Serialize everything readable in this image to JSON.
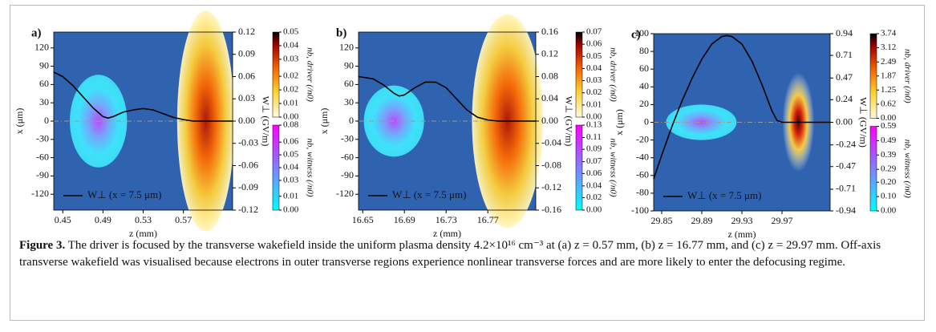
{
  "chart_data": [
    {
      "type": "line",
      "label": "a)",
      "xlabel": "z (mm)",
      "ylabel": "x (μm)",
      "y2label": "W⊥ (GV/m)",
      "xlim": [
        0.441,
        0.619
      ],
      "xticks": [
        0.45,
        0.49,
        0.53,
        0.57
      ],
      "ylim": [
        -146,
        146
      ],
      "yticks": [
        120,
        90,
        60,
        30,
        0,
        -30,
        -60,
        -90,
        -120
      ],
      "y2lim": [
        -0.12,
        0.12
      ],
      "y2ticks": [
        0.12,
        0.09,
        0.06,
        0.03,
        {
          "value": 0,
          "label": "0.00"
        },
        -0.03,
        -0.06,
        -0.09,
        -0.12
      ],
      "x": [
        0.441,
        0.45,
        0.46,
        0.47,
        0.48,
        0.49,
        0.495,
        0.5,
        0.51,
        0.52,
        0.53,
        0.54,
        0.55,
        0.56,
        0.57,
        0.58,
        0.6,
        0.619
      ],
      "series": [
        {
          "name": "W⊥ (x = 7.5 μm)",
          "color": "#000000",
          "axis": "y2",
          "values": [
            0.066,
            0.06,
            0.048,
            0.033,
            0.018,
            0.006,
            0.004,
            0.006,
            0.012,
            0.015,
            0.017,
            0.015,
            0.01,
            0.005,
            0.002,
            0,
            0,
            0
          ]
        }
      ],
      "colorbars": [
        {
          "label": "nb, driver (/n0)",
          "clim": [
            0,
            0.05
          ],
          "ticks": [
            0.05,
            {
              "value": 0.042,
              "label": "0.04"
            },
            {
              "value": 0.034,
              "label": "0.03"
            },
            {
              "value": 0.024,
              "label": "0.02"
            },
            {
              "value": 0.016,
              "label": "0.02"
            },
            {
              "value": 0.008,
              "label": "0.01"
            },
            {
              "value": 0,
              "label": "0.00"
            }
          ]
        },
        {
          "label": "nb, witness (/n0)",
          "clim": [
            0,
            0.08
          ],
          "ticks": [
            0.08,
            {
              "value": 0.064,
              "label": "0.06"
            },
            {
              "value": 0.052,
              "label": "0.05"
            },
            0.04,
            {
              "value": 0.028,
              "label": "0.03"
            },
            {
              "value": 0.013,
              "label": "0.01"
            },
            {
              "value": 0,
              "label": "0.00"
            }
          ]
        }
      ]
    },
    {
      "type": "line",
      "label": "b)",
      "xlabel": "z (mm)",
      "ylabel": "x (μm)",
      "y2label": "W⊥ (GV/m)",
      "xlim": [
        16.646,
        16.816
      ],
      "xticks": [
        16.65,
        16.69,
        16.73,
        16.77
      ],
      "ylim": [
        -146,
        146
      ],
      "yticks": [
        120,
        90,
        60,
        30,
        0,
        -30,
        -60,
        -90,
        -120
      ],
      "y2lim": [
        -0.16,
        0.16
      ],
      "y2ticks": [
        0.16,
        0.12,
        0.08,
        0.04,
        {
          "value": 0,
          "label": "0.00"
        },
        -0.04,
        -0.08,
        -0.12,
        -0.16
      ],
      "x": [
        16.646,
        16.66,
        16.67,
        16.68,
        16.685,
        16.69,
        16.7,
        16.71,
        16.72,
        16.73,
        16.74,
        16.75,
        16.76,
        16.77,
        16.78,
        16.816
      ],
      "series": [
        {
          "name": "W⊥ (x = 7.5 μm)",
          "color": "#000000",
          "axis": "y2",
          "values": [
            0.08,
            0.076,
            0.065,
            0.05,
            0.045,
            0.047,
            0.06,
            0.07,
            0.07,
            0.06,
            0.04,
            0.02,
            0.007,
            0.002,
            0,
            0
          ]
        }
      ],
      "colorbars": [
        {
          "label": "nb, driver (/n0)",
          "clim": [
            0,
            0.07
          ],
          "ticks": [
            0.07,
            0.06,
            0.05,
            0.04,
            0.03,
            0.02,
            0.01,
            {
              "value": 0,
              "label": "0.00"
            }
          ]
        },
        {
          "label": "nb, witness (/n0)",
          "clim": [
            0,
            0.13
          ],
          "ticks": [
            0.13,
            {
              "value": 0.111,
              "label": "0.11"
            },
            {
              "value": 0.093,
              "label": "0.09"
            },
            {
              "value": 0.074,
              "label": "0.07"
            },
            {
              "value": 0.056,
              "label": "0.06"
            },
            {
              "value": 0.037,
              "label": "0.04"
            },
            {
              "value": 0.019,
              "label": "0.02"
            },
            {
              "value": 0,
              "label": "0.00"
            }
          ]
        }
      ]
    },
    {
      "type": "line",
      "label": "c)",
      "xlabel": "z (mm)",
      "ylabel": "x (μm)",
      "y2label": "W⊥ (GV/m)",
      "xlim": [
        29.842,
        30.018
      ],
      "xticks": [
        29.85,
        29.89,
        29.93,
        29.97
      ],
      "ylim": [
        -100,
        100
      ],
      "yticks": [
        100,
        80,
        60,
        40,
        20,
        0,
        -20,
        -40,
        -60,
        -80,
        -100
      ],
      "y2lim": [
        -0.94,
        0.94
      ],
      "y2ticks": [
        0.94,
        0.71,
        0.47,
        0.24,
        {
          "value": 0,
          "label": "0.00"
        },
        -0.24,
        -0.47,
        -0.71,
        -0.94
      ],
      "x": [
        29.842,
        29.85,
        29.86,
        29.87,
        29.88,
        29.89,
        29.9,
        29.91,
        29.915,
        29.92,
        29.93,
        29.94,
        29.95,
        29.96,
        29.965,
        29.97,
        29.98,
        30.018
      ],
      "series": [
        {
          "name": "W⊥ (x = 7.5 μm)",
          "color": "#000000",
          "axis": "y2",
          "values": [
            -0.6,
            -0.35,
            -0.05,
            0.22,
            0.46,
            0.67,
            0.83,
            0.91,
            0.92,
            0.91,
            0.83,
            0.65,
            0.4,
            0.12,
            0.02,
            0,
            0,
            0
          ]
        }
      ],
      "colorbars": [
        {
          "label": "nb, driver (/n0)",
          "clim": [
            0,
            3.74
          ],
          "ticks": [
            3.74,
            3.12,
            2.49,
            1.87,
            1.25,
            0.62,
            {
              "value": 0,
              "label": "0.00"
            }
          ]
        },
        {
          "label": "nb, witness (/n0)",
          "clim": [
            0,
            0.59
          ],
          "ticks": [
            0.59,
            0.49,
            0.39,
            0.29,
            {
              "value": 0.2,
              "label": "0.20"
            },
            {
              "value": 0.1,
              "label": "0.10"
            },
            {
              "value": 0,
              "label": "0.00"
            }
          ]
        }
      ]
    }
  ],
  "caption": {
    "label": "Figure 3.",
    "text": "The driver is focused by the transverse wakefield inside the uniform plasma density 4.2×10¹⁶ cm⁻³ at (a) z = 0.57 mm, (b) z = 16.77 mm, and (c) z = 29.97 mm. Off-axis transverse wakefield was visualised because electrons in outer transverse regions experience nonlinear transverse forces and are more likely to enter the defocusing regime."
  }
}
